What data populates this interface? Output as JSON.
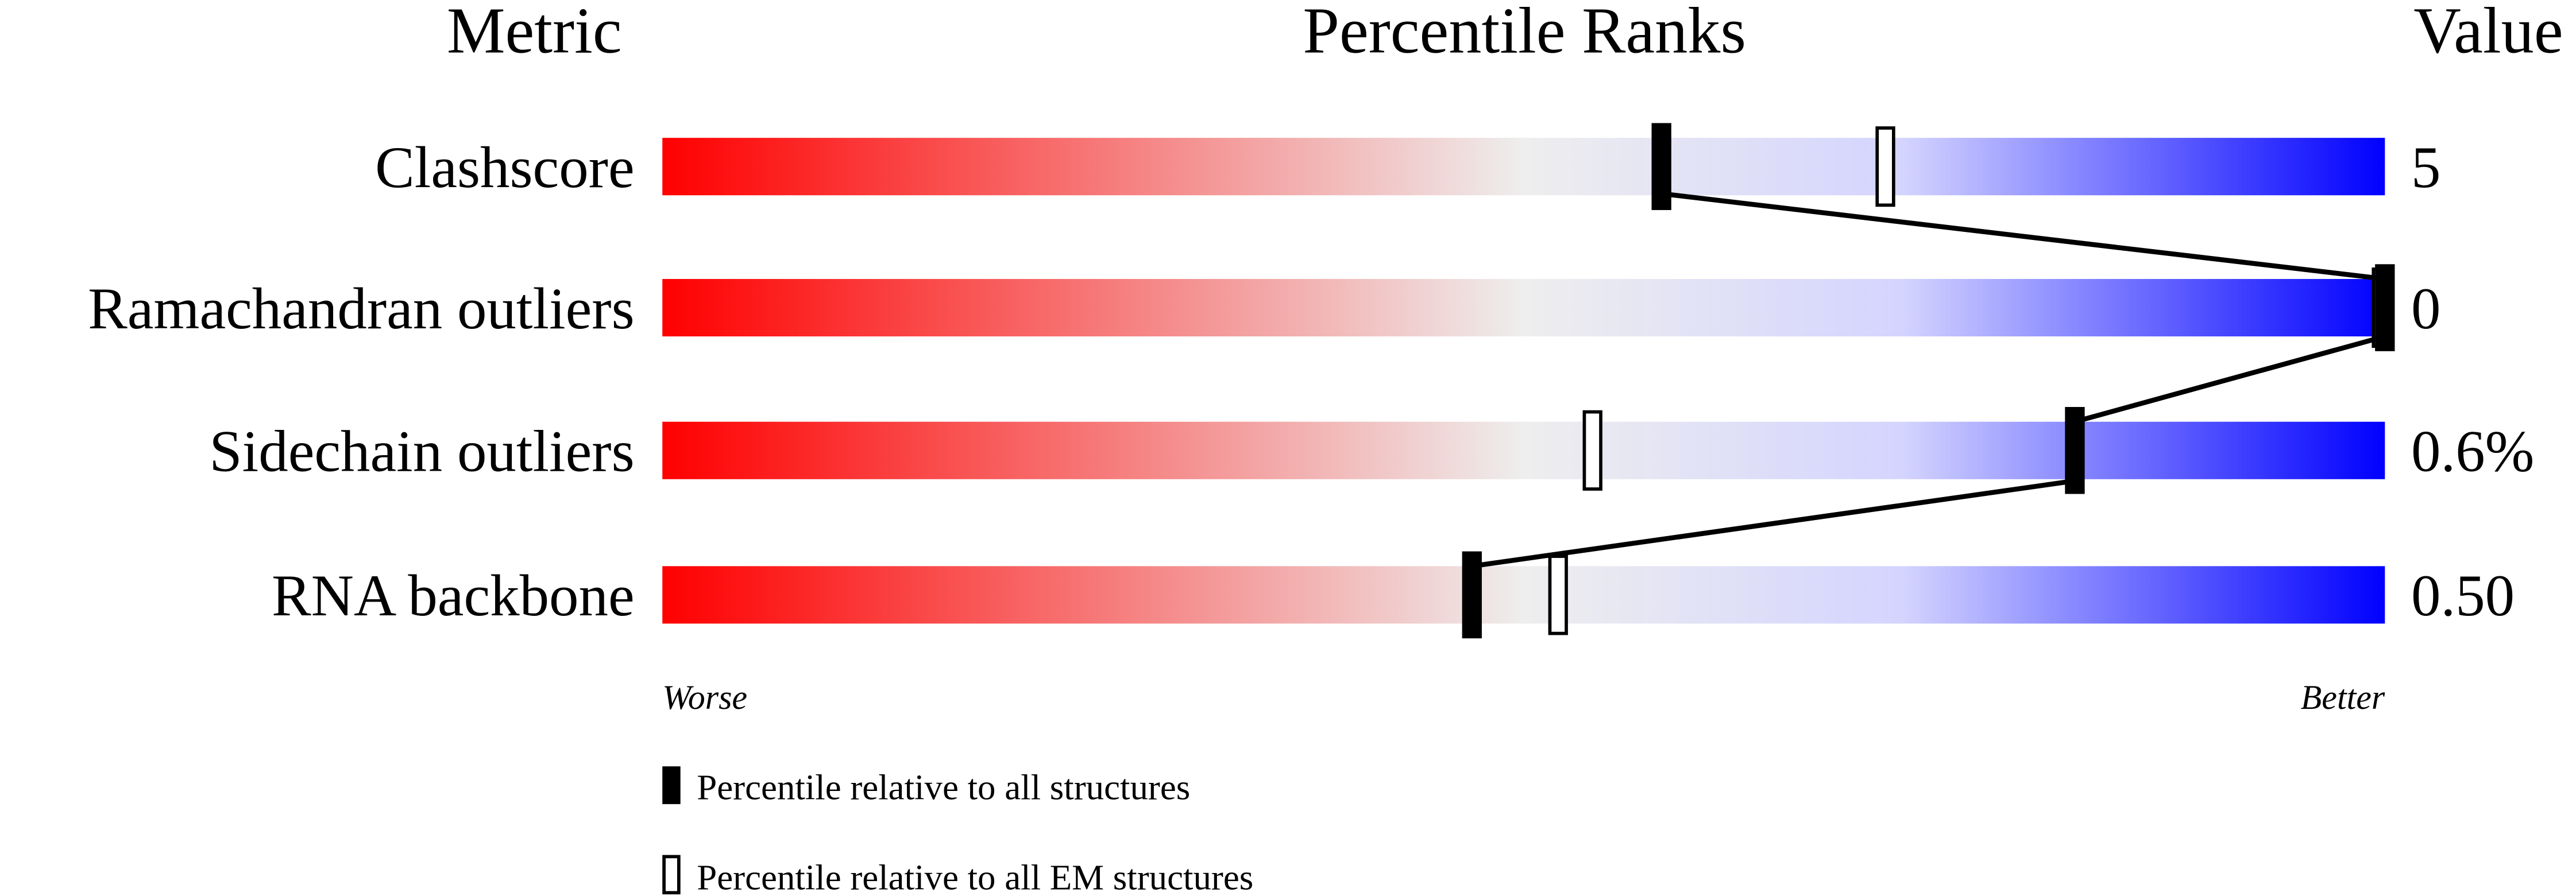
{
  "chart_data": {
    "type": "percentile-bar",
    "headers": {
      "metric": "Metric",
      "ranks": "Percentile Ranks",
      "value": "Value"
    },
    "xlim": [
      0,
      100
    ],
    "axis_labels": {
      "left": "Worse",
      "right": "Better"
    },
    "colors": {
      "worse": "#ff0000",
      "middle": "#eeeeee",
      "better": "#0000ff"
    },
    "metrics": [
      {
        "name": "Clashscore",
        "value": "5",
        "percentile_all": 58,
        "percentile_em": 71
      },
      {
        "name": "Ramachandran outliers",
        "value": "0",
        "percentile_all": 100,
        "percentile_em": 100
      },
      {
        "name": "Sidechain outliers",
        "value": "0.6%",
        "percentile_all": 82,
        "percentile_em": 54
      },
      {
        "name": "RNA backbone",
        "value": "0.50",
        "percentile_all": 47,
        "percentile_em": 52
      }
    ],
    "legend": [
      {
        "marker": "filled",
        "label": "Percentile relative to all structures"
      },
      {
        "marker": "hollow",
        "label": "Percentile relative to all EM structures"
      }
    ]
  }
}
